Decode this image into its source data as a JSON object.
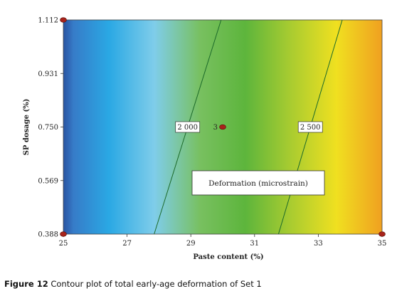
{
  "caption": {
    "lead": "Figure 12",
    "text": " Contour plot of total early-age deformation of Set 1"
  },
  "chart_data": {
    "type": "heatmap",
    "title": "",
    "xlabel": "Paste content (%)",
    "ylabel": "SP dosage (%)",
    "xlim": [
      25,
      35
    ],
    "ylim": [
      0.388,
      1.112
    ],
    "x_ticks": [
      "25",
      "27",
      "29",
      "31",
      "33",
      "35"
    ],
    "y_ticks": [
      "0.388",
      "0.569",
      "0.750",
      "0.931",
      "1.112"
    ],
    "legend": "Deformation (microstrain)",
    "colorscale": [
      "#3a6fc0",
      "#2aa8e4",
      "#7fcdea",
      "#78c060",
      "#5db53c",
      "#a9cc30",
      "#f0e020",
      "#f0a020"
    ],
    "contours": [
      {
        "label": "2 000",
        "value": 2000,
        "points": [
          [
            27.85,
            0.388
          ],
          [
            29.95,
            1.112
          ]
        ]
      },
      {
        "label": "2 500",
        "value": 2500,
        "points": [
          [
            31.75,
            0.388
          ],
          [
            33.75,
            1.112
          ]
        ]
      }
    ],
    "design_points": [
      {
        "x": 25,
        "y": 1.112,
        "label": ""
      },
      {
        "x": 25,
        "y": 0.388,
        "label": ""
      },
      {
        "x": 35,
        "y": 0.388,
        "label": ""
      },
      {
        "x": 30,
        "y": 0.75,
        "label": "3"
      }
    ]
  }
}
